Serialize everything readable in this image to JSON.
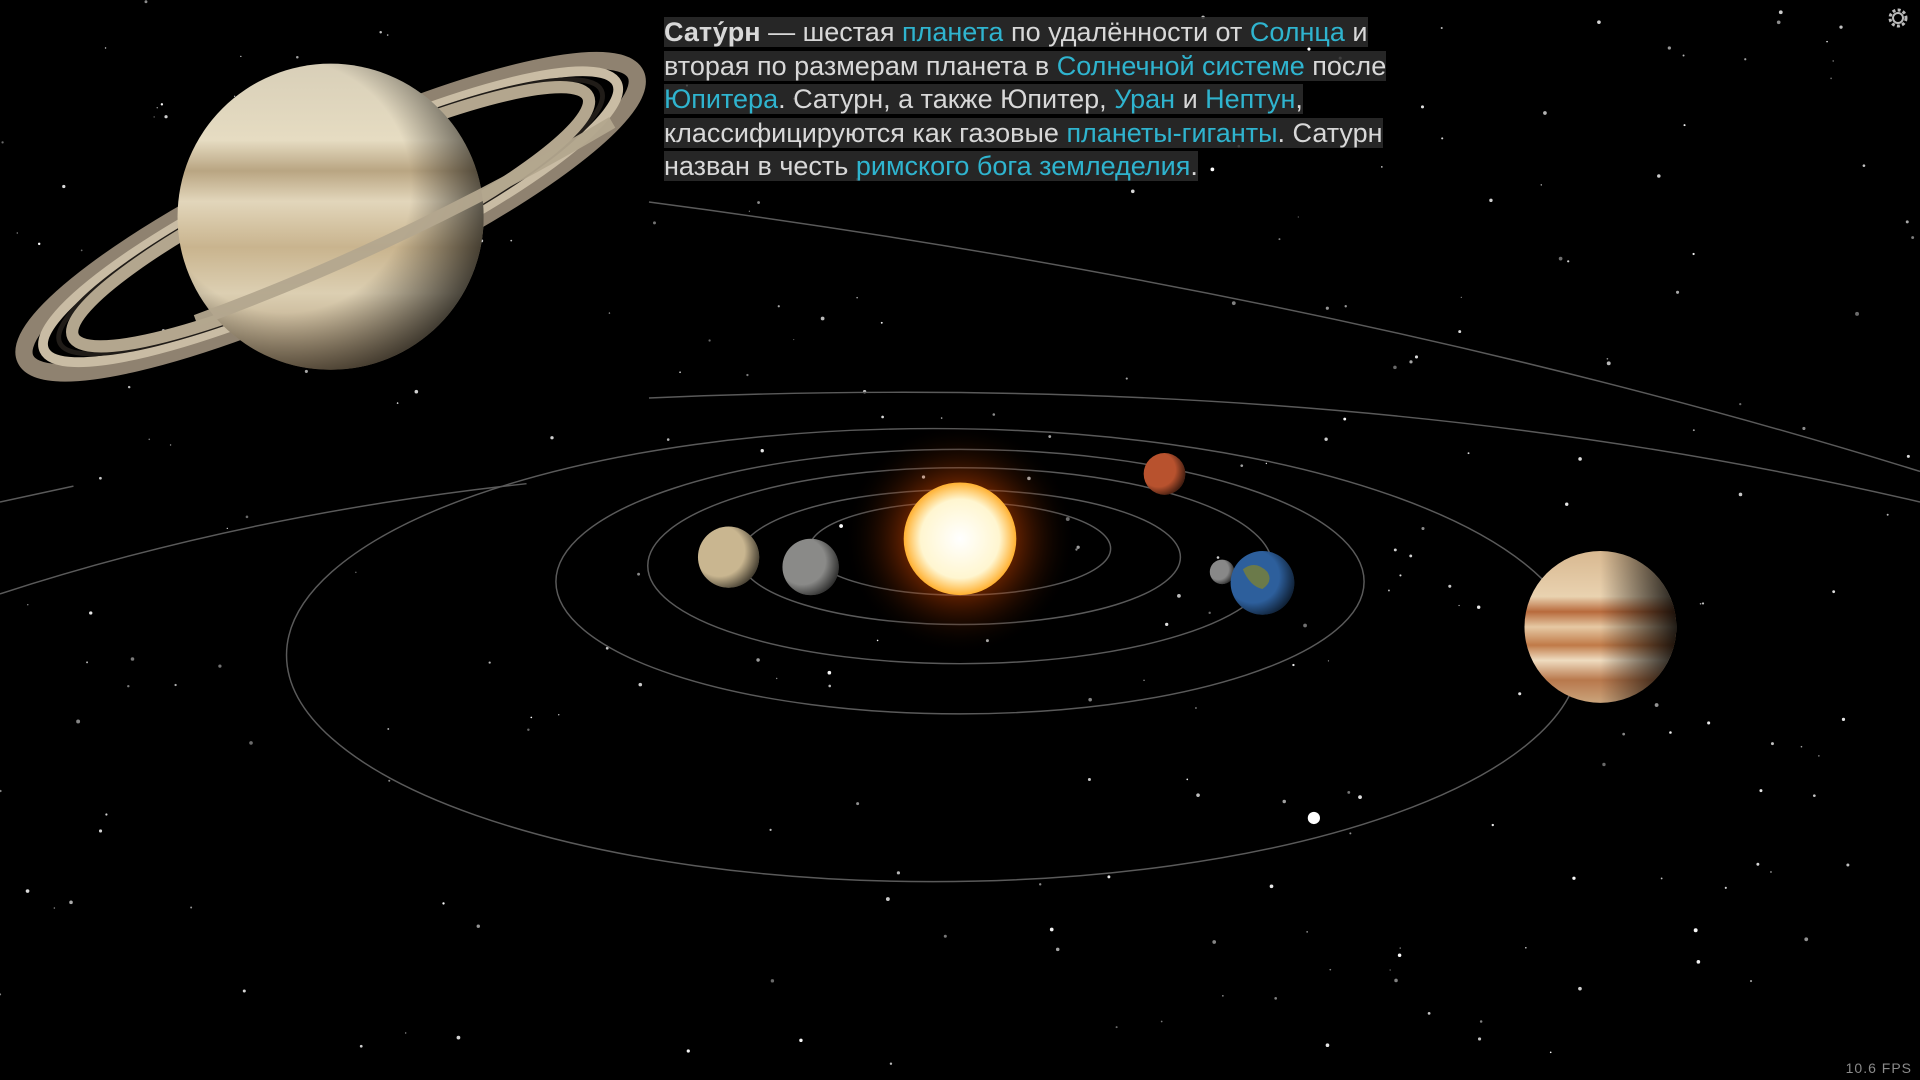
{
  "description": {
    "paragraph": [
      {
        "text": "Сату́рн",
        "style": "bold"
      },
      {
        "text": " — шестая ",
        "style": "plain"
      },
      {
        "text": "планета",
        "style": "link"
      },
      {
        "text": " по удалённости от ",
        "style": "plain"
      },
      {
        "text": "Солнца",
        "style": "link"
      },
      {
        "text": " и вторая по размерам планета в ",
        "style": "plain"
      },
      {
        "text": "Солнечной системе",
        "style": "link"
      },
      {
        "text": " после ",
        "style": "plain"
      },
      {
        "text": "Юпитера",
        "style": "link"
      },
      {
        "text": ". Сатурн, а также Юпитер, ",
        "style": "plain"
      },
      {
        "text": "Уран",
        "style": "link"
      },
      {
        "text": " и ",
        "style": "plain"
      },
      {
        "text": "Нептун",
        "style": "link"
      },
      {
        "text": ", классифицируются как газовые ",
        "style": "plain"
      },
      {
        "text": "планеты-гиганты",
        "style": "link"
      },
      {
        "text": ". Сатурн назван в честь ",
        "style": "plain"
      },
      {
        "text": "римского бога земледелия",
        "style": "link"
      },
      {
        "text": ".",
        "style": "plain"
      }
    ]
  },
  "status": {
    "fps": "10.6 FPS"
  }
}
